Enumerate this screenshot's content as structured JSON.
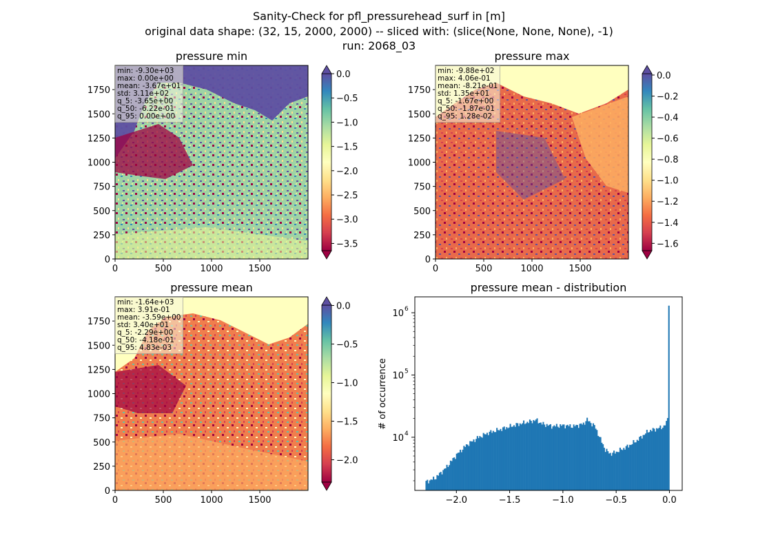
{
  "figure": {
    "title_lines": [
      "Sanity-Check for pfl_pressurehead_surf in [m]",
      "original data shape: (32, 15, 2000, 2000) -- sliced with: (slice(None, None, None), -1)",
      "run: 2068_03"
    ]
  },
  "colors": {
    "spectral": [
      "#9e0142",
      "#d53e4f",
      "#f46d43",
      "#fdae61",
      "#fee08b",
      "#ffffbf",
      "#e6f598",
      "#abdda4",
      "#66c2a5",
      "#3288bd",
      "#5e4fa2"
    ],
    "hist_bar": "#1f77b4"
  },
  "panels": [
    {
      "title": "pressure min",
      "stats": [
        "min: -9.30e+03",
        "max: 0.00e+00",
        "mean: -3.67e+01",
        "std: 3.11e+02",
        "q_5: -3.65e+00",
        "q_50: -6.22e-01",
        "q_95: 0.00e+00"
      ],
      "xticks": [
        "0",
        "500",
        "1000",
        "1500"
      ],
      "yticks": [
        "0",
        "250",
        "500",
        "750",
        "1000",
        "1250",
        "1500",
        "1750"
      ],
      "colorbar": {
        "vmin": -3.65,
        "vmax": 0.0,
        "ticks": [
          "0.0",
          "−0.5",
          "−1.0",
          "−1.5",
          "−2.0",
          "−2.5",
          "−3.0",
          "−3.5"
        ],
        "tick_values": [
          0,
          -0.5,
          -1,
          -1.5,
          -2,
          -2.5,
          -3,
          -3.5
        ]
      }
    },
    {
      "title": "pressure max",
      "stats": [
        "min: -9.88e+02",
        "max: 4.06e-01",
        "mean: -8.21e-01",
        "std: 1.35e+01",
        "q_5: -1.67e+00",
        "q_50: -1.87e-01",
        "q_95: 1.28e-02"
      ],
      "xticks": [
        "0",
        "500",
        "1000",
        "1500"
      ],
      "yticks": [
        "0",
        "250",
        "500",
        "750",
        "1000",
        "1250",
        "1500",
        "1750"
      ],
      "colorbar": {
        "vmin": -1.67,
        "vmax": 0.0128,
        "ticks": [
          "0.0",
          "−0.2",
          "−0.4",
          "−0.6",
          "−0.8",
          "−1.0",
          "−1.2",
          "−1.4",
          "−1.6"
        ],
        "tick_values": [
          0,
          -0.2,
          -0.4,
          -0.6,
          -0.8,
          -1,
          -1.2,
          -1.4,
          -1.6
        ]
      }
    },
    {
      "title": "pressure mean",
      "stats": [
        "min: -1.64e+03",
        "max: 3.91e-01",
        "mean: -3.59e+00",
        "std: 3.40e+01",
        "q_5: -2.29e+00",
        "q_50: -4.18e-01",
        "q_95: 4.83e-03"
      ],
      "xticks": [
        "0",
        "500",
        "1000",
        "1500"
      ],
      "yticks": [
        "0",
        "250",
        "500",
        "750",
        "1000",
        "1250",
        "1500",
        "1750"
      ],
      "colorbar": {
        "vmin": -2.29,
        "vmax": 0.00483,
        "ticks": [
          "0.0",
          "−0.5",
          "−1.0",
          "−1.5",
          "−2.0"
        ],
        "tick_values": [
          0,
          -0.5,
          -1,
          -1.5,
          -2
        ]
      }
    }
  ],
  "chart_data": {
    "type": "bar",
    "title": "pressure mean - distribution",
    "xlabel": "",
    "ylabel": "# of occurrence",
    "yscale": "log",
    "xlim": [
      -2.39,
      0.12
    ],
    "ylim": [
      1400,
      1800000
    ],
    "xticks": [
      "−2.0",
      "−1.5",
      "−1.0",
      "−0.5",
      "0.0"
    ],
    "xtick_values": [
      -2.0,
      -1.5,
      -1.0,
      -0.5,
      0.0
    ],
    "yticks": [
      "10",
      "10",
      "10"
    ],
    "ytick_exponents": [
      "4",
      "5",
      "6"
    ],
    "ytick_values": [
      10000,
      100000,
      1000000
    ],
    "bins": {
      "start": -2.29,
      "end": 0.0
    },
    "counts_keypoints": [
      [
        -2.29,
        1900
      ],
      [
        -2.2,
        2200
      ],
      [
        -2.1,
        3200
      ],
      [
        -2.0,
        5200
      ],
      [
        -1.9,
        7600
      ],
      [
        -1.8,
        9800
      ],
      [
        -1.7,
        11800
      ],
      [
        -1.6,
        13200
      ],
      [
        -1.5,
        14800
      ],
      [
        -1.4,
        16500
      ],
      [
        -1.3,
        18000
      ],
      [
        -1.25,
        19000
      ],
      [
        -1.2,
        16500
      ],
      [
        -1.1,
        15000
      ],
      [
        -1.0,
        15500
      ],
      [
        -0.9,
        15000
      ],
      [
        -0.8,
        16500
      ],
      [
        -0.78,
        19500
      ],
      [
        -0.7,
        15000
      ],
      [
        -0.65,
        9500
      ],
      [
        -0.6,
        6200
      ],
      [
        -0.55,
        5400
      ],
      [
        -0.5,
        5800
      ],
      [
        -0.4,
        7000
      ],
      [
        -0.3,
        9000
      ],
      [
        -0.2,
        12500
      ],
      [
        -0.1,
        14000
      ],
      [
        -0.05,
        15000
      ],
      [
        -0.02,
        18000
      ],
      [
        -0.01,
        28000
      ],
      [
        0.0,
        1300000
      ]
    ]
  }
}
